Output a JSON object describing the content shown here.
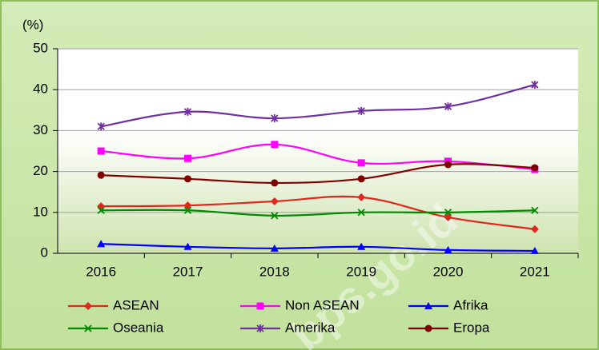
{
  "chart_data": {
    "type": "line",
    "ylabel": "(%)",
    "x": [
      "2016",
      "2017",
      "2018",
      "2019",
      "2020",
      "2021"
    ],
    "ylim": [
      0,
      50
    ],
    "yticks": [
      0,
      10,
      20,
      30,
      40,
      50
    ],
    "grid": true,
    "legend": "bottom",
    "watermark": "bps.go.id",
    "series": [
      {
        "name": "ASEAN",
        "color": "#e3261c",
        "marker": "diamond",
        "values": [
          11.5,
          11.7,
          12.7,
          13.7,
          8.8,
          5.9
        ]
      },
      {
        "name": "Non ASEAN",
        "color": "#ff00ff",
        "marker": "square",
        "values": [
          25.0,
          23.2,
          26.6,
          22.1,
          22.5,
          20.5
        ]
      },
      {
        "name": "Afrika",
        "color": "#0000ff",
        "marker": "triangle",
        "values": [
          2.3,
          1.6,
          1.2,
          1.6,
          0.8,
          0.6
        ]
      },
      {
        "name": "Oseania",
        "color": "#008a00",
        "marker": "x",
        "values": [
          10.5,
          10.5,
          9.2,
          10.0,
          10.0,
          10.5
        ]
      },
      {
        "name": "Amerika",
        "color": "#7030a0",
        "marker": "star",
        "values": [
          31.0,
          34.6,
          33.0,
          34.8,
          35.9,
          41.2
        ]
      },
      {
        "name": "Eropa",
        "color": "#800000",
        "marker": "circle",
        "values": [
          19.1,
          18.2,
          17.2,
          18.2,
          21.7,
          20.9
        ]
      }
    ]
  }
}
